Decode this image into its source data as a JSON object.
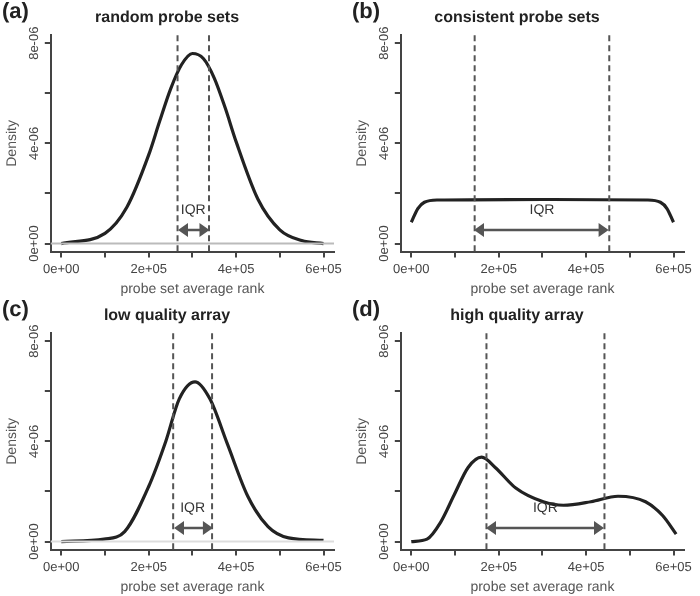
{
  "chart_data": [
    {
      "type": "line",
      "title": "random probe sets",
      "xlabel": "probe set average rank",
      "ylabel": "Density",
      "color": "#222222",
      "marker": "none",
      "x": [
        0,
        100000,
        150000,
        200000,
        225000,
        250000,
        275000,
        300000,
        325000,
        350000,
        375000,
        400000,
        450000,
        500000,
        550000,
        600000
      ],
      "values": [
        0,
        4.1e-07,
        1.45e-06,
        3.54e-06,
        4.88e-06,
        6.17e-06,
        7.14e-06,
        7.59e-06,
        7.39e-06,
        6.61e-06,
        5.42e-06,
        4.07e-06,
        1.77e-06,
        5.5e-07,
        1.2e-07,
        0
      ],
      "xlim": [
        -24000,
        624000
      ],
      "ylim": [
        -3.2e-07,
        8.32e-06
      ],
      "xticks": [
        {
          "value": 0,
          "label": "0e+00"
        },
        {
          "value": 100000,
          "label": null
        },
        {
          "value": 200000,
          "label": "2e+05"
        },
        {
          "value": 300000,
          "label": null
        },
        {
          "value": 400000,
          "label": "4e+05"
        },
        {
          "value": 500000,
          "label": null
        },
        {
          "value": 600000,
          "label": "6e+05"
        }
      ],
      "yticks": [
        {
          "value": 0,
          "label": "0e+00"
        },
        {
          "value": 2e-06,
          "label": null
        },
        {
          "value": 4e-06,
          "label": "4e-06"
        },
        {
          "value": 6e-06,
          "label": null
        },
        {
          "value": 8e-06,
          "label": "8e-06"
        }
      ],
      "ref_lines": [
        {
          "axis": "x",
          "value": 266000,
          "color": "#555555",
          "line_style": "dashed"
        },
        {
          "axis": "x",
          "value": 338000,
          "color": "#555555",
          "line_style": "dashed"
        },
        {
          "axis": "y",
          "value": 0,
          "color": "#bbbbbb",
          "line_style": "solid"
        }
      ],
      "annotations": [
        "(a)",
        "IQR"
      ]
    },
    {
      "type": "line",
      "title": "consistent probe sets",
      "xlabel": "probe set average rank",
      "ylabel": "Density",
      "color": "#222222",
      "marker": "none",
      "x": [
        0,
        15000,
        30000,
        60000,
        300000,
        540000,
        570000,
        585000,
        600000
      ],
      "values": [
        8.5e-07,
        1.4e-06,
        1.65e-06,
        1.74e-06,
        1.76e-06,
        1.74e-06,
        1.65e-06,
        1.4e-06,
        8.5e-07
      ],
      "xlim": [
        -24000,
        624000
      ],
      "ylim": [
        -3.2e-07,
        8.32e-06
      ],
      "xticks": [
        {
          "value": 0,
          "label": "0e+00"
        },
        {
          "value": 100000,
          "label": null
        },
        {
          "value": 200000,
          "label": "2e+05"
        },
        {
          "value": 300000,
          "label": null
        },
        {
          "value": 400000,
          "label": "4e+05"
        },
        {
          "value": 500000,
          "label": null
        },
        {
          "value": 600000,
          "label": "6e+05"
        }
      ],
      "yticks": [
        {
          "value": 0,
          "label": "0e+00"
        },
        {
          "value": 2e-06,
          "label": null
        },
        {
          "value": 4e-06,
          "label": "4e-06"
        },
        {
          "value": 6e-06,
          "label": null
        },
        {
          "value": 8e-06,
          "label": "8e-06"
        }
      ],
      "ref_lines": [
        {
          "axis": "x",
          "value": 145000,
          "color": "#555555",
          "line_style": "dashed"
        },
        {
          "axis": "x",
          "value": 453000,
          "color": "#555555",
          "line_style": "dashed"
        }
      ],
      "annotations": [
        "(b)",
        "IQR"
      ]
    },
    {
      "type": "line",
      "title": "low quality array",
      "xlabel": "probe set average rank",
      "ylabel": "Density",
      "color": "#222222",
      "marker": "none",
      "x": [
        0,
        98000,
        145000,
        200000,
        239000,
        270000,
        306000,
        340000,
        380000,
        427000,
        473000,
        520000,
        600000
      ],
      "values": [
        0,
        1e-07,
        4e-07,
        2.2e-06,
        4e-06,
        5.7e-06,
        6.38e-06,
        5.7e-06,
        3.9e-06,
        1.8e-06,
        6e-07,
        1.5e-07,
        5e-08
      ],
      "xlim": [
        -24000,
        624000
      ],
      "ylim": [
        -3.2e-07,
        8.32e-06
      ],
      "xticks": [
        {
          "value": 0,
          "label": "0e+00"
        },
        {
          "value": 100000,
          "label": null
        },
        {
          "value": 200000,
          "label": "2e+05"
        },
        {
          "value": 300000,
          "label": null
        },
        {
          "value": 400000,
          "label": "4e+05"
        },
        {
          "value": 500000,
          "label": null
        },
        {
          "value": 600000,
          "label": "6e+05"
        }
      ],
      "yticks": [
        {
          "value": 0,
          "label": "0e+00"
        },
        {
          "value": 2e-06,
          "label": null
        },
        {
          "value": 4e-06,
          "label": "4e-06"
        },
        {
          "value": 6e-06,
          "label": null
        },
        {
          "value": 8e-06,
          "label": "8e-06"
        }
      ],
      "ref_lines": [
        {
          "axis": "x",
          "value": 256000,
          "color": "#555555",
          "line_style": "dashed"
        },
        {
          "axis": "x",
          "value": 345000,
          "color": "#555555",
          "line_style": "dashed"
        },
        {
          "axis": "y",
          "value": 0,
          "color": "#dddddd",
          "line_style": "solid"
        }
      ],
      "annotations": [
        "(c)",
        "IQR"
      ]
    },
    {
      "type": "line",
      "title": "high quality array",
      "xlabel": "probe set average rank",
      "ylabel": "Density",
      "color": "#222222",
      "marker": "none",
      "x": [
        0,
        36000,
        67000,
        98000,
        130000,
        161000,
        192000,
        239000,
        302000,
        348000,
        411000,
        473000,
        536000,
        575000,
        606000
      ],
      "values": [
        0,
        1e-07,
        7.7e-07,
        1.86e-06,
        2.96e-06,
        3.37e-06,
        2.96e-06,
        2.14e-06,
        1.59e-06,
        1.45e-06,
        1.59e-06,
        1.81e-06,
        1.59e-06,
        1.04e-06,
        3e-07
      ],
      "xlim": [
        -24000,
        624000
      ],
      "ylim": [
        -3.2e-07,
        8.32e-06
      ],
      "xticks": [
        {
          "value": 0,
          "label": "0e+00"
        },
        {
          "value": 100000,
          "label": null
        },
        {
          "value": 200000,
          "label": "2e+05"
        },
        {
          "value": 300000,
          "label": null
        },
        {
          "value": 400000,
          "label": "4e+05"
        },
        {
          "value": 500000,
          "label": null
        },
        {
          "value": 600000,
          "label": "6e+05"
        }
      ],
      "yticks": [
        {
          "value": 0,
          "label": "0e+00"
        },
        {
          "value": 2e-06,
          "label": null
        },
        {
          "value": 4e-06,
          "label": "4e-06"
        },
        {
          "value": 6e-06,
          "label": null
        },
        {
          "value": 8e-06,
          "label": "8e-06"
        }
      ],
      "ref_lines": [
        {
          "axis": "x",
          "value": 172000,
          "color": "#555555",
          "line_style": "dashed"
        },
        {
          "axis": "x",
          "value": 442000,
          "color": "#555555",
          "line_style": "dashed"
        }
      ],
      "annotations": [
        "(d)",
        "IQR"
      ]
    }
  ]
}
